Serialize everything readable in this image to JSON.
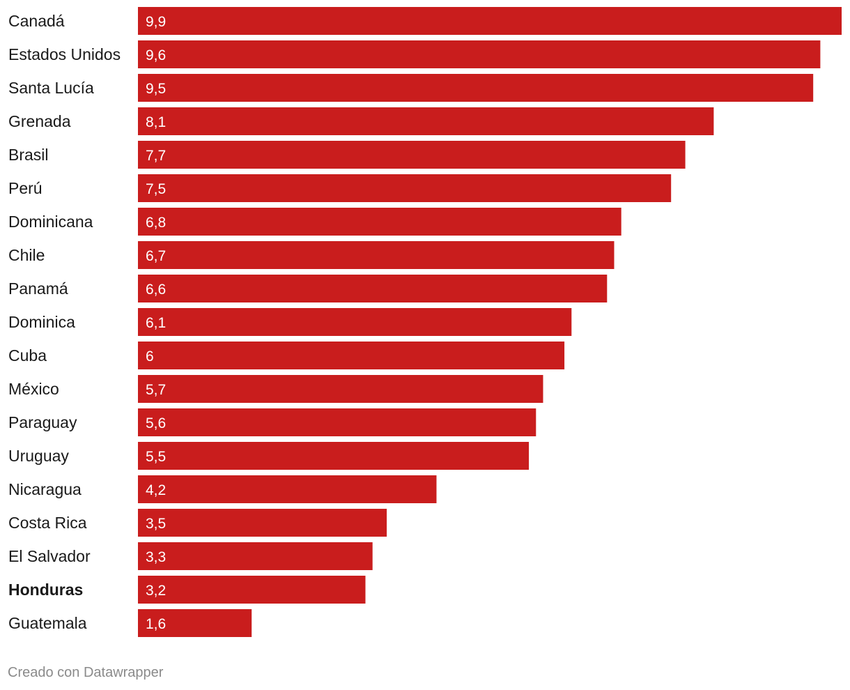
{
  "chart_data": {
    "type": "bar",
    "orientation": "horizontal",
    "bar_color": "#c91d1d",
    "value_label_color": "#ffffff",
    "text_color": "#1a1a1a",
    "x_range": [
      0,
      9.9
    ],
    "categories": [
      "Canadá",
      "Estados Unidos",
      "Santa Lucía",
      "Grenada",
      "Brasil",
      "Perú",
      "Dominicana",
      "Chile",
      "Panamá",
      "Dominica",
      "Cuba",
      "México",
      "Paraguay",
      "Uruguay",
      "Nicaragua",
      "Costa Rica",
      "El Salvador",
      "Honduras",
      "Guatemala"
    ],
    "values": [
      9.9,
      9.6,
      9.5,
      8.1,
      7.7,
      7.5,
      6.8,
      6.7,
      6.6,
      6.1,
      6,
      5.7,
      5.6,
      5.5,
      4.2,
      3.5,
      3.3,
      3.2,
      1.6
    ],
    "value_labels": [
      "9,9",
      "9,6",
      "9,5",
      "8,1",
      "7,7",
      "7,5",
      "6,8",
      "6,7",
      "6,6",
      "6,1",
      "6",
      "5,7",
      "5,6",
      "5,5",
      "4,2",
      "3,5",
      "3,3",
      "3,2",
      "1,6"
    ],
    "highlighted_category": "Honduras"
  },
  "footer": {
    "credit": "Creado con Datawrapper"
  }
}
